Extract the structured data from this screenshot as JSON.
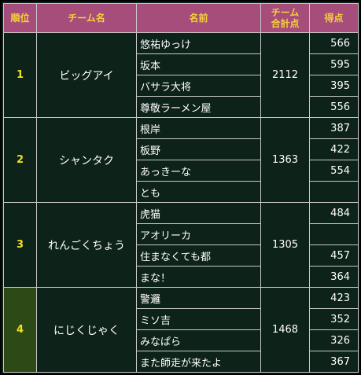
{
  "headers": {
    "rank": "順位",
    "team": "チーム名",
    "member": "名前",
    "total_line1": "チーム",
    "total_line2": "合計点",
    "score": "得点"
  },
  "teams": [
    {
      "rank": "1",
      "name": "ビッグアイ",
      "total": "2112",
      "highlighted": false,
      "members": [
        {
          "name": "悠祐ゆっけ",
          "score": "566"
        },
        {
          "name": "坂本",
          "score": "595"
        },
        {
          "name": "バサラ大将",
          "score": "395"
        },
        {
          "name": "尊敬ラーメン屋",
          "score": "556"
        }
      ]
    },
    {
      "rank": "2",
      "name": "シャンタク",
      "total": "1363",
      "highlighted": false,
      "members": [
        {
          "name": "根岸",
          "score": "387"
        },
        {
          "name": "板野",
          "score": "422"
        },
        {
          "name": "あっきーな",
          "score": "554"
        },
        {
          "name": "とも",
          "score": ""
        }
      ]
    },
    {
      "rank": "3",
      "name": "れんごくちょう",
      "total": "1305",
      "highlighted": false,
      "members": [
        {
          "name": "虎猫",
          "score": "484"
        },
        {
          "name": "アオリーカ",
          "score": ""
        },
        {
          "name": "住まなくても都",
          "score": "457"
        },
        {
          "name": "まな！",
          "score": "364"
        }
      ]
    },
    {
      "rank": "4",
      "name": "にじくじゃく",
      "total": "1468",
      "highlighted": true,
      "members": [
        {
          "name": "警邏",
          "score": "423"
        },
        {
          "name": "ミソ吉",
          "score": "352"
        },
        {
          "name": "みなぱら",
          "score": "326"
        },
        {
          "name": "また師走が来たよ",
          "score": "367"
        }
      ]
    }
  ]
}
